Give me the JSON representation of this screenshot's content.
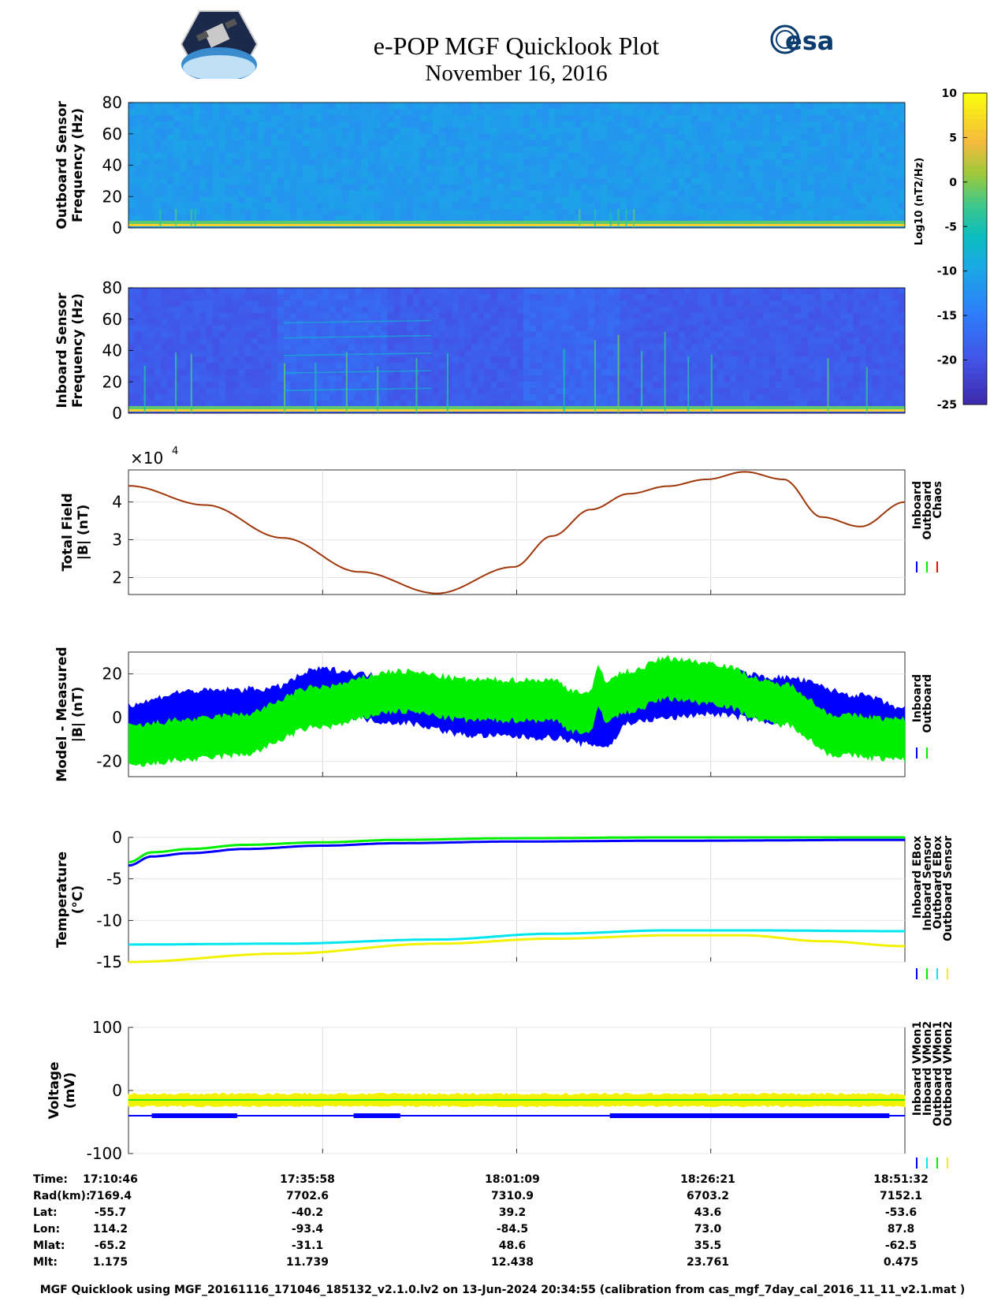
{
  "header": {
    "title": "e-POP MGF Quicklook Plot",
    "subtitle": "November 16, 2016",
    "esa_logo_text": "esa"
  },
  "colorbar": {
    "label": "Log10 (nT2/Hz)",
    "ticks": [
      10,
      5,
      0,
      -5,
      -10,
      -15,
      -20,
      -25
    ],
    "tick_labels": [
      "10",
      "5",
      "0",
      "-5",
      "-10",
      "-15",
      "-20",
      "-25"
    ],
    "range": [
      -25,
      10
    ],
    "colormap": "parula"
  },
  "colors": {
    "inboard": "#0000ff",
    "outboard": "#00ee00",
    "chaos": "#ff0000",
    "cyan": "#00e5ee",
    "yellow": "#f2f200",
    "total_field_line": "#a0380c"
  },
  "time_axis": {
    "ticks": [
      "17:10:46",
      "17:35:58",
      "18:01:09",
      "18:26:21",
      "18:51:32"
    ],
    "start_minute": 0,
    "end_minute": 100.77
  },
  "ephemeris": {
    "rows": [
      {
        "label": "Time:",
        "values": [
          "17:10:46",
          "17:35:58",
          "18:01:09",
          "18:26:21",
          "18:51:32"
        ]
      },
      {
        "label": "Rad(km):",
        "values": [
          "7169.4",
          "7702.6",
          "7310.9",
          "6703.2",
          "7152.1"
        ]
      },
      {
        "label": "Lat:",
        "values": [
          "-55.7",
          "-40.2",
          "39.2",
          "43.6",
          "-53.6"
        ]
      },
      {
        "label": "Lon:",
        "values": [
          "114.2",
          "-93.4",
          "-84.5",
          "73.0",
          "87.8"
        ]
      },
      {
        "label": "Mlat:",
        "values": [
          "-65.2",
          "-31.1",
          "48.6",
          "35.5",
          "-62.5"
        ]
      },
      {
        "label": "Mlt:",
        "values": [
          "1.175",
          "11.739",
          "12.438",
          "23.761",
          "0.475"
        ]
      }
    ]
  },
  "footer": "MGF Quicklook using MGF_20161116_171046_185132_v2.1.0.lv2 on 13-Jun-2024 20:34:55 (calibration from cas_mgf_7day_cal_2016_11_11_v2.1.mat )",
  "chart_data": [
    {
      "type": "heatmap",
      "panel": "outboard-spectrogram",
      "ylabel": [
        "Outboard Sensor",
        "Frequency (Hz)"
      ],
      "ylim": [
        0,
        80
      ],
      "yticks": [
        "0",
        "20",
        "40",
        "60",
        "80"
      ]
    },
    {
      "type": "heatmap",
      "panel": "inboard-spectrogram",
      "ylabel": [
        "Inboard Sensor",
        "Frequency (Hz)"
      ],
      "ylim": [
        0,
        80
      ],
      "yticks": [
        "0",
        "20",
        "40",
        "60",
        "80"
      ]
    },
    {
      "type": "line",
      "panel": "total-field",
      "ylabel": [
        "Total Field",
        "|B| (nT)"
      ],
      "ylim": [
        1.55,
        4.85
      ],
      "yticks": [
        "2",
        "3",
        "4"
      ],
      "exponent_label": "×10",
      "exponent": "4",
      "legend": [
        "Inboard",
        "Outboard",
        "Chaos"
      ],
      "x": [
        0,
        10,
        20,
        30,
        40,
        50,
        55,
        60,
        65,
        70,
        75,
        80,
        85,
        90,
        95,
        100.77
      ],
      "values": [
        4.43,
        3.92,
        3.05,
        2.15,
        1.58,
        2.28,
        3.1,
        3.8,
        4.22,
        4.42,
        4.6,
        4.8,
        4.6,
        3.6,
        3.35,
        4.0
      ]
    },
    {
      "type": "line",
      "panel": "model-measured",
      "ylabel": [
        "Model - Measured",
        "|B| (nT)"
      ],
      "ylim": [
        -27,
        30
      ],
      "yticks": [
        "-20",
        "0",
        "20"
      ],
      "legend": [
        "Inboard",
        "Outboard"
      ],
      "series": [
        {
          "name": "Inboard",
          "x": [
            0,
            8,
            18,
            25,
            35,
            45,
            55,
            60,
            62,
            65,
            70,
            75,
            85,
            95,
            100.77
          ],
          "values": [
            -4,
            2,
            3,
            12,
            8,
            2,
            1,
            -2,
            -3,
            8,
            10,
            12,
            8,
            0,
            -6
          ]
        },
        {
          "name": "Outboard",
          "x": [
            0,
            8,
            14,
            25,
            35,
            45,
            55,
            58,
            60,
            61,
            62,
            65,
            70,
            75,
            85,
            92,
            100.77
          ],
          "values": [
            -13,
            -10,
            -8,
            5,
            12,
            8,
            8,
            3,
            2,
            14,
            8,
            12,
            18,
            16,
            6,
            -8,
            -10
          ]
        }
      ]
    },
    {
      "type": "line",
      "panel": "temperature",
      "ylabel": [
        "Temperature",
        "(°C)"
      ],
      "ylim": [
        -15,
        0
      ],
      "yticks": [
        "-15",
        "-10",
        "-5",
        "0"
      ],
      "legend": [
        "Inboard EBox",
        "Inboard Sensor",
        "Outboard EBox",
        "Outboard Sensor"
      ],
      "series": [
        {
          "name": "Inboard EBox",
          "x": [
            0,
            3,
            8,
            15,
            25,
            35,
            50,
            70,
            100.77
          ],
          "values": [
            -3.4,
            -2.3,
            -1.9,
            -1.4,
            -1.0,
            -0.7,
            -0.5,
            -0.4,
            -0.3
          ]
        },
        {
          "name": "Inboard Sensor",
          "x": [
            0,
            3,
            8,
            15,
            25,
            35,
            50,
            70,
            100.77
          ],
          "values": [
            -3.0,
            -1.8,
            -1.4,
            -0.9,
            -0.6,
            -0.3,
            -0.1,
            0.0,
            0.0
          ]
        },
        {
          "name": "Outboard EBox",
          "x": [
            0,
            20,
            40,
            55,
            70,
            80,
            100.77
          ],
          "values": [
            -12.9,
            -12.8,
            -12.3,
            -11.6,
            -11.2,
            -11.2,
            -11.3
          ]
        },
        {
          "name": "Outboard Sensor",
          "x": [
            0,
            20,
            40,
            55,
            70,
            80,
            90,
            100.77
          ],
          "values": [
            -15.0,
            -14.0,
            -12.8,
            -12.2,
            -11.8,
            -11.8,
            -12.5,
            -13.1
          ]
        }
      ]
    },
    {
      "type": "line",
      "panel": "voltage",
      "ylabel": [
        "Voltage",
        "(mV)"
      ],
      "ylim": [
        -100,
        100
      ],
      "yticks": [
        "-100",
        "0",
        "100"
      ],
      "legend": [
        "Inboard VMon1",
        "Inboard VMon2",
        "Outboard VMon1",
        "Outboard VMon2"
      ],
      "series": [
        {
          "name": "Inboard VMon1",
          "x": [
            0,
            100.77
          ],
          "values": [
            -40,
            -40
          ]
        },
        {
          "name": "Inboard VMon2",
          "x": [
            0,
            100.77
          ],
          "values": [
            -15,
            -15
          ]
        },
        {
          "name": "Outboard VMon1",
          "x": [
            0,
            100.77
          ],
          "values": [
            -15,
            -15
          ]
        },
        {
          "name": "Outboard VMon2",
          "x": [
            0,
            100.77
          ],
          "values": [
            -15,
            -15
          ]
        }
      ]
    }
  ]
}
